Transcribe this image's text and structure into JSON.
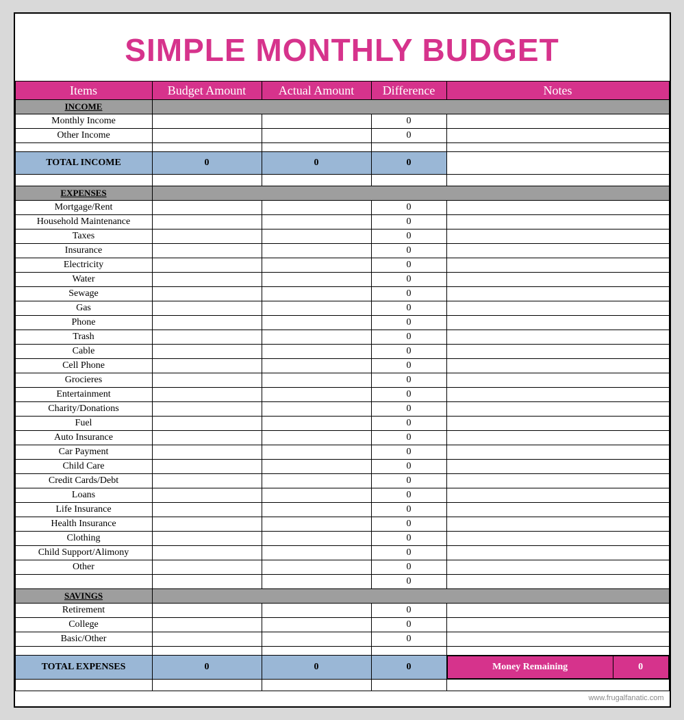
{
  "title": "SIMPLE MONTHLY BUDGET",
  "colors": {
    "pink": "#d6338c",
    "blue": "#9ab7d6",
    "gray": "#9e9e9e",
    "page_bg": "#d9d9d9",
    "border": "#000000",
    "white": "#ffffff"
  },
  "columns": {
    "items": "Items",
    "budget": "Budget Amount",
    "actual": "Actual Amount",
    "diff": "Difference",
    "notes": "Notes"
  },
  "sections": {
    "income": {
      "label": "INCOME",
      "rows": [
        {
          "label": "Monthly Income",
          "budget": "",
          "actual": "",
          "diff": "0",
          "notes": ""
        },
        {
          "label": "Other Income",
          "budget": "",
          "actual": "",
          "diff": "0",
          "notes": ""
        }
      ],
      "total": {
        "label": "TOTAL INCOME",
        "budget": "0",
        "actual": "0",
        "diff": "0"
      }
    },
    "expenses": {
      "label": "EXPENSES",
      "rows": [
        {
          "label": "Mortgage/Rent",
          "budget": "",
          "actual": "",
          "diff": "0",
          "notes": ""
        },
        {
          "label": "Household Maintenance",
          "budget": "",
          "actual": "",
          "diff": "0",
          "notes": ""
        },
        {
          "label": "Taxes",
          "budget": "",
          "actual": "",
          "diff": "0",
          "notes": ""
        },
        {
          "label": "Insurance",
          "budget": "",
          "actual": "",
          "diff": "0",
          "notes": ""
        },
        {
          "label": "Electricity",
          "budget": "",
          "actual": "",
          "diff": "0",
          "notes": ""
        },
        {
          "label": "Water",
          "budget": "",
          "actual": "",
          "diff": "0",
          "notes": ""
        },
        {
          "label": "Sewage",
          "budget": "",
          "actual": "",
          "diff": "0",
          "notes": ""
        },
        {
          "label": "Gas",
          "budget": "",
          "actual": "",
          "diff": "0",
          "notes": ""
        },
        {
          "label": "Phone",
          "budget": "",
          "actual": "",
          "diff": "0",
          "notes": ""
        },
        {
          "label": "Trash",
          "budget": "",
          "actual": "",
          "diff": "0",
          "notes": ""
        },
        {
          "label": "Cable",
          "budget": "",
          "actual": "",
          "diff": "0",
          "notes": ""
        },
        {
          "label": "Cell Phone",
          "budget": "",
          "actual": "",
          "diff": "0",
          "notes": ""
        },
        {
          "label": "Grocieres",
          "budget": "",
          "actual": "",
          "diff": "0",
          "notes": ""
        },
        {
          "label": "Entertainment",
          "budget": "",
          "actual": "",
          "diff": "0",
          "notes": ""
        },
        {
          "label": "Charity/Donations",
          "budget": "",
          "actual": "",
          "diff": "0",
          "notes": ""
        },
        {
          "label": "Fuel",
          "budget": "",
          "actual": "",
          "diff": "0",
          "notes": ""
        },
        {
          "label": "Auto Insurance",
          "budget": "",
          "actual": "",
          "diff": "0",
          "notes": ""
        },
        {
          "label": "Car Payment",
          "budget": "",
          "actual": "",
          "diff": "0",
          "notes": ""
        },
        {
          "label": "Child Care",
          "budget": "",
          "actual": "",
          "diff": "0",
          "notes": ""
        },
        {
          "label": "Credit Cards/Debt",
          "budget": "",
          "actual": "",
          "diff": "0",
          "notes": ""
        },
        {
          "label": "Loans",
          "budget": "",
          "actual": "",
          "diff": "0",
          "notes": ""
        },
        {
          "label": "Life Insurance",
          "budget": "",
          "actual": "",
          "diff": "0",
          "notes": ""
        },
        {
          "label": "Health Insurance",
          "budget": "",
          "actual": "",
          "diff": "0",
          "notes": ""
        },
        {
          "label": "Clothing",
          "budget": "",
          "actual": "",
          "diff": "0",
          "notes": ""
        },
        {
          "label": "Child Support/Alimony",
          "budget": "",
          "actual": "",
          "diff": "0",
          "notes": ""
        },
        {
          "label": "Other",
          "budget": "",
          "actual": "",
          "diff": "0",
          "notes": ""
        },
        {
          "label": "",
          "budget": "",
          "actual": "",
          "diff": "0",
          "notes": ""
        }
      ]
    },
    "savings": {
      "label": "SAVINGS",
      "rows": [
        {
          "label": "Retirement",
          "budget": "",
          "actual": "",
          "diff": "0",
          "notes": ""
        },
        {
          "label": "College",
          "budget": "",
          "actual": "",
          "diff": "0",
          "notes": ""
        },
        {
          "label": "Basic/Other",
          "budget": "",
          "actual": "",
          "diff": "0",
          "notes": ""
        }
      ]
    },
    "total_expenses": {
      "label": "TOTAL EXPENSES",
      "budget": "0",
      "actual": "0",
      "diff": "0",
      "money_remaining_label": "Money Remaining",
      "money_remaining_value": "0"
    }
  },
  "footer_credit": "www.frugalfanatic.com"
}
